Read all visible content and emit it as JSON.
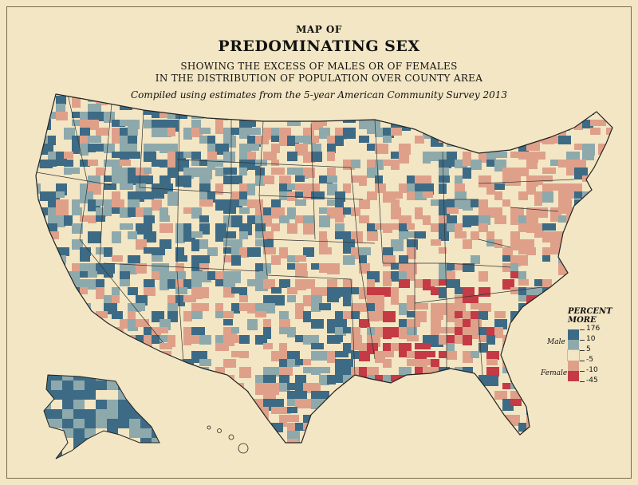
{
  "title": {
    "line1": "MAP OF",
    "line2": "PREDOMINATING SEX",
    "line3": "SHOWING THE EXCESS OF MALES OR OF FEMALES",
    "line4": "IN THE DISTRIBUTION OF POPULATION OVER COUNTY AREA",
    "source": "Compiled using estimates from the 5-year American Community Survey 2013"
  },
  "legend": {
    "title_line1": "PERCENT",
    "title_line2": "MORE",
    "male_label": "Male",
    "female_label": "Female",
    "breaks": [
      "176",
      "10",
      "5",
      "-5",
      "-10",
      "-45"
    ],
    "classes": [
      {
        "name": "male-high",
        "color": "#3d6b85"
      },
      {
        "name": "male-mid",
        "color": "#8ea9ab"
      },
      {
        "name": "neutral",
        "color": "#f3e6c4"
      },
      {
        "name": "female-mid",
        "color": "#dfa08a"
      },
      {
        "name": "female-high",
        "color": "#c43a45"
      }
    ]
  },
  "colors": {
    "background": "#f3e6c4",
    "border": "#555555",
    "male_high": "#3d6b85",
    "male_mid": "#8ea9ab",
    "female_mid": "#dfa08a",
    "female_high": "#c43a45"
  }
}
